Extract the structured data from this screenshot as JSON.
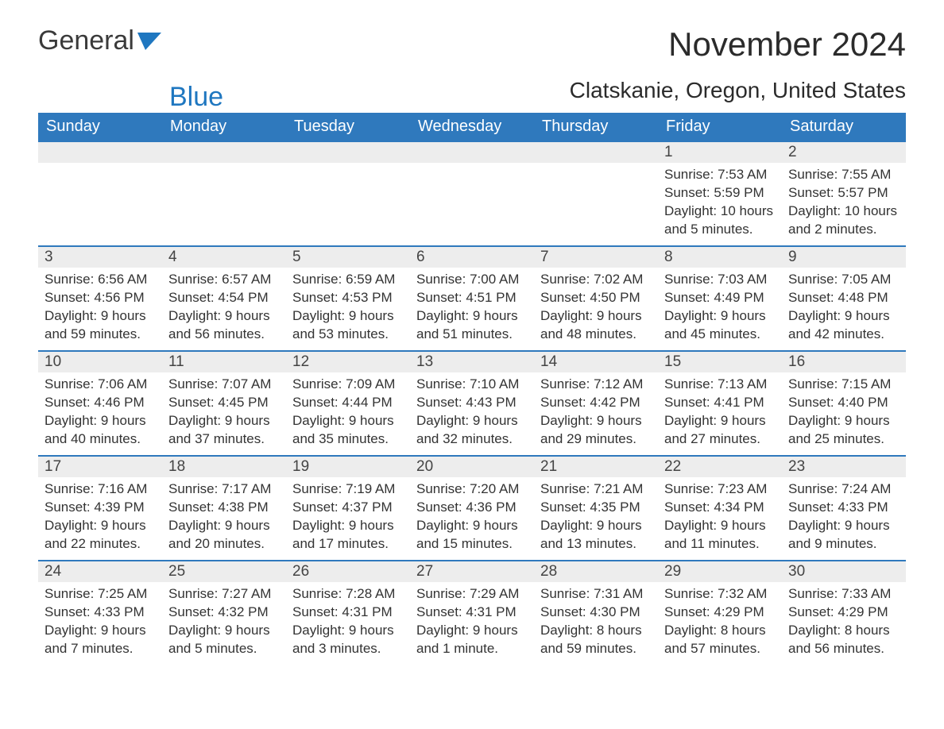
{
  "brand": {
    "word1": "General",
    "word2": "Blue"
  },
  "title": "November 2024",
  "subtitle": "Clatskanie, Oregon, United States",
  "colors": {
    "header_bg": "#2f79bd",
    "header_text": "#ffffff",
    "daynum_bg": "#ededed",
    "day_border": "#2f79bd",
    "text": "#333333",
    "page_bg": "#ffffff",
    "brand_blue": "#1f77c0",
    "brand_gray": "#3a3a3a"
  },
  "weekdays": [
    "Sunday",
    "Monday",
    "Tuesday",
    "Wednesday",
    "Thursday",
    "Friday",
    "Saturday"
  ],
  "weeks": [
    [
      {
        "blank": true
      },
      {
        "blank": true
      },
      {
        "blank": true
      },
      {
        "blank": true
      },
      {
        "blank": true
      },
      {
        "day": "1",
        "sunrise": "Sunrise: 7:53 AM",
        "sunset": "Sunset: 5:59 PM",
        "daylight": "Daylight: 10 hours and 5 minutes."
      },
      {
        "day": "2",
        "sunrise": "Sunrise: 7:55 AM",
        "sunset": "Sunset: 5:57 PM",
        "daylight": "Daylight: 10 hours and 2 minutes."
      }
    ],
    [
      {
        "day": "3",
        "sunrise": "Sunrise: 6:56 AM",
        "sunset": "Sunset: 4:56 PM",
        "daylight": "Daylight: 9 hours and 59 minutes."
      },
      {
        "day": "4",
        "sunrise": "Sunrise: 6:57 AM",
        "sunset": "Sunset: 4:54 PM",
        "daylight": "Daylight: 9 hours and 56 minutes."
      },
      {
        "day": "5",
        "sunrise": "Sunrise: 6:59 AM",
        "sunset": "Sunset: 4:53 PM",
        "daylight": "Daylight: 9 hours and 53 minutes."
      },
      {
        "day": "6",
        "sunrise": "Sunrise: 7:00 AM",
        "sunset": "Sunset: 4:51 PM",
        "daylight": "Daylight: 9 hours and 51 minutes."
      },
      {
        "day": "7",
        "sunrise": "Sunrise: 7:02 AM",
        "sunset": "Sunset: 4:50 PM",
        "daylight": "Daylight: 9 hours and 48 minutes."
      },
      {
        "day": "8",
        "sunrise": "Sunrise: 7:03 AM",
        "sunset": "Sunset: 4:49 PM",
        "daylight": "Daylight: 9 hours and 45 minutes."
      },
      {
        "day": "9",
        "sunrise": "Sunrise: 7:05 AM",
        "sunset": "Sunset: 4:48 PM",
        "daylight": "Daylight: 9 hours and 42 minutes."
      }
    ],
    [
      {
        "day": "10",
        "sunrise": "Sunrise: 7:06 AM",
        "sunset": "Sunset: 4:46 PM",
        "daylight": "Daylight: 9 hours and 40 minutes."
      },
      {
        "day": "11",
        "sunrise": "Sunrise: 7:07 AM",
        "sunset": "Sunset: 4:45 PM",
        "daylight": "Daylight: 9 hours and 37 minutes."
      },
      {
        "day": "12",
        "sunrise": "Sunrise: 7:09 AM",
        "sunset": "Sunset: 4:44 PM",
        "daylight": "Daylight: 9 hours and 35 minutes."
      },
      {
        "day": "13",
        "sunrise": "Sunrise: 7:10 AM",
        "sunset": "Sunset: 4:43 PM",
        "daylight": "Daylight: 9 hours and 32 minutes."
      },
      {
        "day": "14",
        "sunrise": "Sunrise: 7:12 AM",
        "sunset": "Sunset: 4:42 PM",
        "daylight": "Daylight: 9 hours and 29 minutes."
      },
      {
        "day": "15",
        "sunrise": "Sunrise: 7:13 AM",
        "sunset": "Sunset: 4:41 PM",
        "daylight": "Daylight: 9 hours and 27 minutes."
      },
      {
        "day": "16",
        "sunrise": "Sunrise: 7:15 AM",
        "sunset": "Sunset: 4:40 PM",
        "daylight": "Daylight: 9 hours and 25 minutes."
      }
    ],
    [
      {
        "day": "17",
        "sunrise": "Sunrise: 7:16 AM",
        "sunset": "Sunset: 4:39 PM",
        "daylight": "Daylight: 9 hours and 22 minutes."
      },
      {
        "day": "18",
        "sunrise": "Sunrise: 7:17 AM",
        "sunset": "Sunset: 4:38 PM",
        "daylight": "Daylight: 9 hours and 20 minutes."
      },
      {
        "day": "19",
        "sunrise": "Sunrise: 7:19 AM",
        "sunset": "Sunset: 4:37 PM",
        "daylight": "Daylight: 9 hours and 17 minutes."
      },
      {
        "day": "20",
        "sunrise": "Sunrise: 7:20 AM",
        "sunset": "Sunset: 4:36 PM",
        "daylight": "Daylight: 9 hours and 15 minutes."
      },
      {
        "day": "21",
        "sunrise": "Sunrise: 7:21 AM",
        "sunset": "Sunset: 4:35 PM",
        "daylight": "Daylight: 9 hours and 13 minutes."
      },
      {
        "day": "22",
        "sunrise": "Sunrise: 7:23 AM",
        "sunset": "Sunset: 4:34 PM",
        "daylight": "Daylight: 9 hours and 11 minutes."
      },
      {
        "day": "23",
        "sunrise": "Sunrise: 7:24 AM",
        "sunset": "Sunset: 4:33 PM",
        "daylight": "Daylight: 9 hours and 9 minutes."
      }
    ],
    [
      {
        "day": "24",
        "sunrise": "Sunrise: 7:25 AM",
        "sunset": "Sunset: 4:33 PM",
        "daylight": "Daylight: 9 hours and 7 minutes."
      },
      {
        "day": "25",
        "sunrise": "Sunrise: 7:27 AM",
        "sunset": "Sunset: 4:32 PM",
        "daylight": "Daylight: 9 hours and 5 minutes."
      },
      {
        "day": "26",
        "sunrise": "Sunrise: 7:28 AM",
        "sunset": "Sunset: 4:31 PM",
        "daylight": "Daylight: 9 hours and 3 minutes."
      },
      {
        "day": "27",
        "sunrise": "Sunrise: 7:29 AM",
        "sunset": "Sunset: 4:31 PM",
        "daylight": "Daylight: 9 hours and 1 minute."
      },
      {
        "day": "28",
        "sunrise": "Sunrise: 7:31 AM",
        "sunset": "Sunset: 4:30 PM",
        "daylight": "Daylight: 8 hours and 59 minutes."
      },
      {
        "day": "29",
        "sunrise": "Sunrise: 7:32 AM",
        "sunset": "Sunset: 4:29 PM",
        "daylight": "Daylight: 8 hours and 57 minutes."
      },
      {
        "day": "30",
        "sunrise": "Sunrise: 7:33 AM",
        "sunset": "Sunset: 4:29 PM",
        "daylight": "Daylight: 8 hours and 56 minutes."
      }
    ]
  ]
}
